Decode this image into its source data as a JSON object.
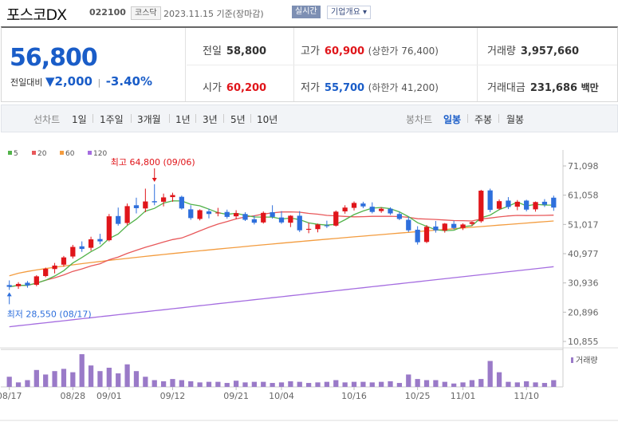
{
  "header": {
    "name": "포스코DX",
    "code": "022100",
    "market": "코스닥",
    "date_label": "2023.11.15 기준(장마감)",
    "realtime_label": "실시간",
    "company_label": "기업개요 ▾"
  },
  "summary": {
    "price": "56,800",
    "change_label": "전일대비",
    "change_arrow": "▼",
    "change_value": "2,000",
    "change_pct": "-3.40%",
    "prev_label": "전일",
    "prev_value": "58,800",
    "high_label": "고가",
    "high_value": "60,900",
    "upper_limit": "(상한가 76,400)",
    "volume_label": "거래량",
    "volume_value": "3,957,660",
    "open_label": "시가",
    "open_value": "60,200",
    "low_label": "저가",
    "low_value": "55,700",
    "lower_limit": "(하한가 41,200)",
    "amount_label": "거래대금",
    "amount_value": "231,686",
    "amount_unit": "백만"
  },
  "periods": {
    "line_label": "선차트",
    "items": [
      "1일",
      "1주일",
      "3개월",
      "1년",
      "3년",
      "5년",
      "10년"
    ],
    "candle_label": "봉차트",
    "candle_items": [
      "일봉",
      "주봉",
      "월봉"
    ],
    "active": "일봉"
  },
  "chart_data": {
    "type": "candlestick",
    "legend": [
      "5",
      "20",
      "60",
      "120"
    ],
    "colors": {
      "ma5": "#52b34a",
      "ma20": "#e8585a",
      "ma60": "#f39c3f",
      "ma120": "#a56de0",
      "up": "#e0151a",
      "down": "#2e6fdc",
      "volume": "#9a7ac8"
    },
    "y_ticks": [
      "71,098",
      "61,058",
      "51,017",
      "40,977",
      "30,936",
      "20,896",
      "10,855"
    ],
    "ylim": [
      10855,
      71098
    ],
    "x_ticks": [
      {
        "i": 0,
        "label": "08/17"
      },
      {
        "i": 7,
        "label": "08/28"
      },
      {
        "i": 11,
        "label": "09/01"
      },
      {
        "i": 18,
        "label": "09/12"
      },
      {
        "i": 25,
        "label": "09/21"
      },
      {
        "i": 30,
        "label": "10/04"
      },
      {
        "i": 38,
        "label": "10/16"
      },
      {
        "i": 45,
        "label": "10/25"
      },
      {
        "i": 50,
        "label": "11/01"
      },
      {
        "i": 57,
        "label": "11/10"
      }
    ],
    "high_note": "최고 64,800 (09/06)",
    "low_note": "최저 28,550 (08/17)",
    "volume_label": "거래량",
    "candles": [
      [
        30200,
        31800,
        28550,
        29600
      ],
      [
        29800,
        31200,
        28900,
        30600
      ],
      [
        31000,
        31600,
        29300,
        30100
      ],
      [
        30300,
        33600,
        29800,
        33200
      ],
      [
        33300,
        36200,
        32900,
        35800
      ],
      [
        35700,
        37800,
        34200,
        36900
      ],
      [
        37200,
        40200,
        36500,
        39700
      ],
      [
        40000,
        44000,
        39300,
        43300
      ],
      [
        43500,
        45200,
        41600,
        42600
      ],
      [
        43000,
        46800,
        42000,
        45900
      ],
      [
        46000,
        47800,
        44200,
        45200
      ],
      [
        45600,
        54600,
        45200,
        53800
      ],
      [
        53900,
        56800,
        50600,
        51200
      ],
      [
        51500,
        58200,
        50800,
        57300
      ],
      [
        57600,
        60200,
        54800,
        56600
      ],
      [
        56500,
        63300,
        55200,
        58900
      ],
      [
        59000,
        64800,
        57600,
        58600
      ],
      [
        58800,
        61600,
        57200,
        60300
      ],
      [
        60400,
        61900,
        58800,
        61100
      ],
      [
        60500,
        60900,
        56100,
        56500
      ],
      [
        56200,
        57600,
        52600,
        53200
      ],
      [
        52900,
        56200,
        52400,
        55900
      ],
      [
        55500,
        56400,
        53100,
        54600
      ],
      [
        54800,
        56700,
        53800,
        55100
      ],
      [
        55300,
        56100,
        53000,
        53600
      ],
      [
        53800,
        55900,
        52800,
        54900
      ],
      [
        54600,
        55200,
        52200,
        52600
      ],
      [
        52800,
        54100,
        51000,
        51600
      ],
      [
        51700,
        55500,
        51300,
        55000
      ],
      [
        55200,
        57600,
        53000,
        53600
      ],
      [
        53400,
        55600,
        51200,
        51700
      ],
      [
        51600,
        54200,
        50100,
        54000
      ],
      [
        54000,
        55600,
        48400,
        49000
      ],
      [
        49200,
        51600,
        48000,
        49500
      ],
      [
        49400,
        51300,
        48300,
        51000
      ],
      [
        50700,
        52300,
        49800,
        50400
      ],
      [
        50600,
        55800,
        50300,
        55400
      ],
      [
        55500,
        57600,
        54700,
        56800
      ],
      [
        56700,
        58900,
        55800,
        58400
      ],
      [
        58200,
        58800,
        56600,
        57200
      ],
      [
        57100,
        58600,
        54800,
        55300
      ],
      [
        55600,
        56900,
        55000,
        56400
      ],
      [
        56400,
        56900,
        54300,
        54800
      ],
      [
        54600,
        55400,
        52500,
        52900
      ],
      [
        52600,
        53600,
        48400,
        49000
      ],
      [
        49200,
        50400,
        44100,
        44900
      ],
      [
        45000,
        50800,
        44600,
        50200
      ],
      [
        50300,
        52200,
        48200,
        49000
      ],
      [
        48900,
        51500,
        48200,
        51300
      ],
      [
        51200,
        52300,
        49300,
        49800
      ],
      [
        49800,
        51400,
        49100,
        51000
      ],
      [
        51200,
        52000,
        50500,
        51800
      ],
      [
        52100,
        62900,
        51600,
        62600
      ],
      [
        62700,
        63300,
        55200,
        56000
      ],
      [
        56400,
        59600,
        56000,
        59000
      ],
      [
        59200,
        60400,
        56300,
        57000
      ],
      [
        57100,
        59400,
        55900,
        58800
      ],
      [
        59200,
        59500,
        55500,
        56100
      ],
      [
        56200,
        58900,
        55400,
        58700
      ],
      [
        58800,
        59700,
        57000,
        57800
      ],
      [
        60200,
        60900,
        55700,
        56800
      ]
    ],
    "volume": [
      18,
      8,
      12,
      30,
      22,
      28,
      32,
      26,
      58,
      38,
      28,
      34,
      24,
      40,
      28,
      18,
      12,
      10,
      14,
      12,
      10,
      8,
      9,
      9,
      7,
      11,
      8,
      9,
      9,
      7,
      8,
      10,
      9,
      7,
      8,
      9,
      12,
      8,
      9,
      9,
      8,
      9,
      10,
      7,
      22,
      14,
      12,
      12,
      9,
      6,
      8,
      12,
      14,
      46,
      26,
      9,
      8,
      10,
      8,
      7,
      12
    ]
  }
}
